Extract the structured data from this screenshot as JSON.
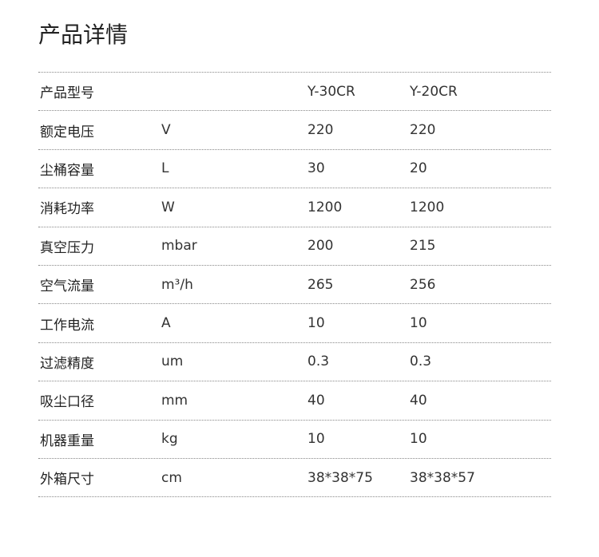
{
  "title": "产品详情",
  "rows": [
    [
      "产品型号",
      "",
      "Y-30CR",
      "Y-20CR"
    ],
    [
      "额定电压",
      "V",
      "220",
      "220"
    ],
    [
      "尘桶容量",
      "L",
      "30",
      "20"
    ],
    [
      "消耗功率",
      "W",
      "1200",
      "1200"
    ],
    [
      "真空压力",
      "mbar",
      "200",
      "215"
    ],
    [
      "空气流量",
      "m³/h",
      "265",
      "256"
    ],
    [
      "工作电流",
      "A",
      "10",
      "10"
    ],
    [
      "过滤精度",
      "um",
      "0.3",
      "0.3"
    ],
    [
      "吸尘口径",
      "mm",
      "40",
      "40"
    ],
    [
      "机器重量",
      "kg",
      "10",
      "10"
    ],
    [
      "外箱尺寸",
      "cm",
      "38*38*75",
      "38*38*57"
    ]
  ]
}
